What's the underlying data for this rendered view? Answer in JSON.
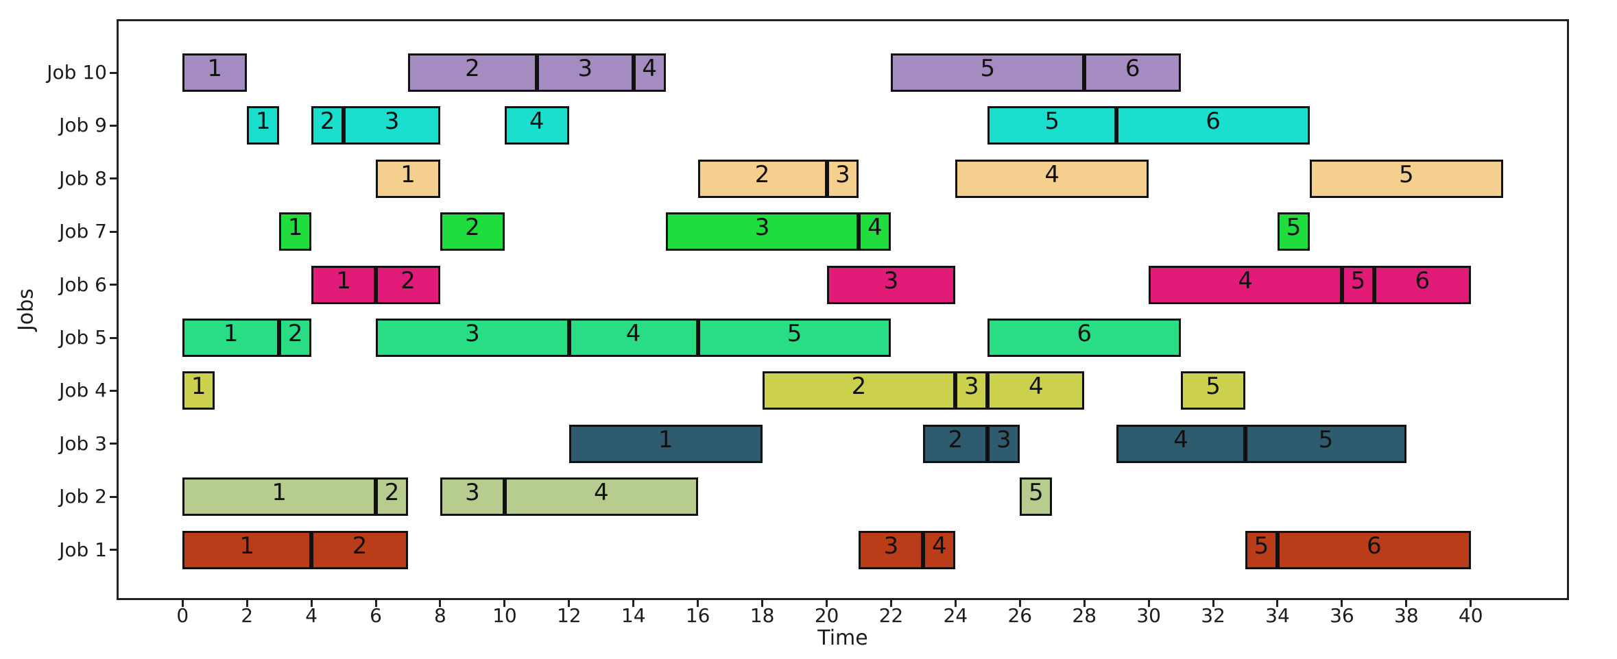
{
  "chart_data": {
    "type": "bar",
    "subtype": "horizontal-gantt",
    "title": "",
    "xlabel": "Time",
    "ylabel": "Jobs",
    "xlim": [
      -2.05,
      43.05
    ],
    "x_ticks": [
      0,
      2,
      4,
      6,
      8,
      10,
      12,
      14,
      16,
      18,
      20,
      22,
      24,
      26,
      28,
      30,
      32,
      34,
      36,
      38,
      40
    ],
    "grid": false,
    "legend": "none",
    "bar_labels": "operation index printed inside each bar",
    "jobs": [
      {
        "label": "Job 10",
        "color": "#a58cc0",
        "operations": [
          {
            "op": 1,
            "start": 0,
            "end": 2
          },
          {
            "op": 2,
            "start": 7,
            "end": 11
          },
          {
            "op": 3,
            "start": 11,
            "end": 14
          },
          {
            "op": 4,
            "start": 14,
            "end": 15
          },
          {
            "op": 5,
            "start": 22,
            "end": 28
          },
          {
            "op": 6,
            "start": 28,
            "end": 31
          }
        ]
      },
      {
        "label": "Job 9",
        "color": "#1bdfce",
        "operations": [
          {
            "op": 1,
            "start": 2,
            "end": 3
          },
          {
            "op": 2,
            "start": 4,
            "end": 5
          },
          {
            "op": 3,
            "start": 5,
            "end": 8
          },
          {
            "op": 4,
            "start": 10,
            "end": 12
          },
          {
            "op": 5,
            "start": 25,
            "end": 29
          },
          {
            "op": 6,
            "start": 29,
            "end": 35
          }
        ]
      },
      {
        "label": "Job 8",
        "color": "#f5cf8e",
        "operations": [
          {
            "op": 1,
            "start": 6,
            "end": 8
          },
          {
            "op": 2,
            "start": 16,
            "end": 20
          },
          {
            "op": 3,
            "start": 20,
            "end": 21
          },
          {
            "op": 4,
            "start": 24,
            "end": 30
          },
          {
            "op": 5,
            "start": 35,
            "end": 41
          }
        ]
      },
      {
        "label": "Job 7",
        "color": "#1fdd3d",
        "operations": [
          {
            "op": 1,
            "start": 3,
            "end": 4
          },
          {
            "op": 2,
            "start": 8,
            "end": 10
          },
          {
            "op": 3,
            "start": 15,
            "end": 21
          },
          {
            "op": 4,
            "start": 21,
            "end": 22
          },
          {
            "op": 5,
            "start": 34,
            "end": 35
          }
        ]
      },
      {
        "label": "Job 6",
        "color": "#e21a78",
        "operations": [
          {
            "op": 1,
            "start": 4,
            "end": 6
          },
          {
            "op": 2,
            "start": 6,
            "end": 8
          },
          {
            "op": 3,
            "start": 20,
            "end": 24
          },
          {
            "op": 4,
            "start": 30,
            "end": 36
          },
          {
            "op": 5,
            "start": 36,
            "end": 37
          },
          {
            "op": 6,
            "start": 37,
            "end": 40
          }
        ]
      },
      {
        "label": "Job 5",
        "color": "#28dd84",
        "operations": [
          {
            "op": 1,
            "start": 0,
            "end": 3
          },
          {
            "op": 2,
            "start": 3,
            "end": 4
          },
          {
            "op": 3,
            "start": 6,
            "end": 12
          },
          {
            "op": 4,
            "start": 12,
            "end": 16
          },
          {
            "op": 5,
            "start": 16,
            "end": 22
          },
          {
            "op": 6,
            "start": 25,
            "end": 31
          }
        ]
      },
      {
        "label": "Job 4",
        "color": "#cbd14d",
        "operations": [
          {
            "op": 1,
            "start": 0,
            "end": 1
          },
          {
            "op": 2,
            "start": 18,
            "end": 24
          },
          {
            "op": 3,
            "start": 24,
            "end": 25
          },
          {
            "op": 4,
            "start": 25,
            "end": 28
          },
          {
            "op": 5,
            "start": 31,
            "end": 33
          }
        ]
      },
      {
        "label": "Job 3",
        "color": "#2e5b6e",
        "operations": [
          {
            "op": 1,
            "start": 12,
            "end": 18
          },
          {
            "op": 2,
            "start": 23,
            "end": 25
          },
          {
            "op": 3,
            "start": 25,
            "end": 26
          },
          {
            "op": 4,
            "start": 29,
            "end": 33
          },
          {
            "op": 5,
            "start": 33,
            "end": 38
          }
        ]
      },
      {
        "label": "Job 2",
        "color": "#b7cd8f",
        "operations": [
          {
            "op": 1,
            "start": 0,
            "end": 6
          },
          {
            "op": 2,
            "start": 6,
            "end": 7
          },
          {
            "op": 3,
            "start": 8,
            "end": 10
          },
          {
            "op": 4,
            "start": 10,
            "end": 16
          },
          {
            "op": 5,
            "start": 26,
            "end": 27
          }
        ]
      },
      {
        "label": "Job 1",
        "color": "#bb3c18",
        "operations": [
          {
            "op": 1,
            "start": 0,
            "end": 4
          },
          {
            "op": 2,
            "start": 4,
            "end": 7
          },
          {
            "op": 3,
            "start": 21,
            "end": 23
          },
          {
            "op": 4,
            "start": 23,
            "end": 24
          },
          {
            "op": 5,
            "start": 33,
            "end": 34
          },
          {
            "op": 6,
            "start": 34,
            "end": 40
          }
        ]
      }
    ]
  }
}
